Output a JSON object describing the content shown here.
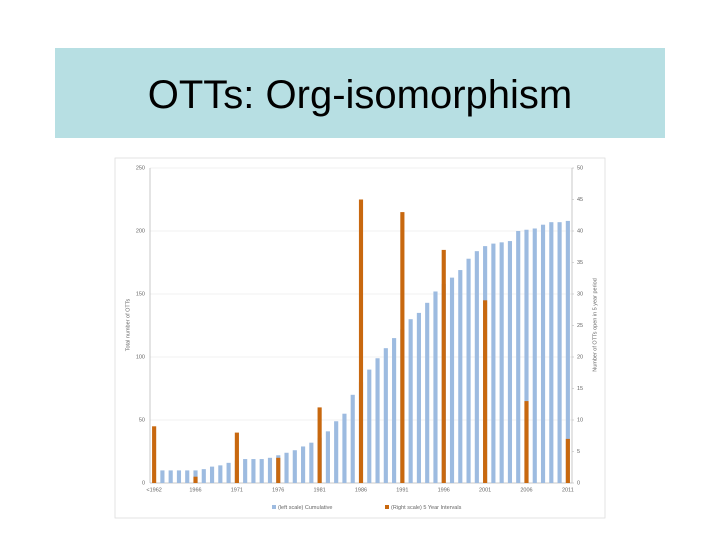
{
  "chart_data": {
    "type": "bar",
    "title": "OTTs: Org-isomorphism",
    "y_label": "Total number of OTTs",
    "y2_label": "Number of OTTs open in 5 year period",
    "categories": [
      "<1962",
      null,
      null,
      null,
      null,
      "1966",
      null,
      null,
      null,
      null,
      "1971",
      null,
      null,
      null,
      null,
      "1976",
      null,
      null,
      null,
      null,
      "1981",
      null,
      null,
      null,
      null,
      "1986",
      null,
      null,
      null,
      null,
      "1991",
      null,
      null,
      null,
      null,
      "1996",
      null,
      null,
      null,
      null,
      "2001",
      null,
      null,
      null,
      null,
      "2006",
      null,
      null,
      null,
      null,
      "2011"
    ],
    "series": [
      {
        "name": "(left scale) Cumulative",
        "color": "#9dbbe0",
        "values": [
          null,
          10,
          10,
          10,
          10,
          10,
          11,
          13,
          14,
          16,
          18,
          19,
          19,
          19,
          20,
          22,
          24,
          26,
          29,
          32,
          36,
          41,
          49,
          55,
          70,
          80,
          90,
          99,
          107,
          115,
          122,
          130,
          135,
          143,
          152,
          158,
          163,
          169,
          178,
          184,
          188,
          190,
          191,
          192,
          200,
          201,
          202,
          205,
          207,
          207,
          208
        ]
      },
      {
        "name": "(Right scale) 5 Year Intervals",
        "color": "#c8680f",
        "axis": "y2",
        "values": [
          9,
          null,
          null,
          null,
          null,
          1,
          null,
          null,
          null,
          null,
          8,
          null,
          null,
          null,
          null,
          4,
          null,
          null,
          null,
          null,
          12,
          null,
          null,
          null,
          null,
          45,
          null,
          null,
          null,
          null,
          43,
          null,
          null,
          null,
          null,
          37,
          null,
          null,
          null,
          null,
          29,
          null,
          null,
          null,
          null,
          13,
          null,
          null,
          null,
          null,
          7
        ]
      }
    ],
    "ylim": [
      0,
      250
    ],
    "yticks": [
      0,
      50,
      100,
      150,
      200,
      250
    ],
    "y2lim": [
      0,
      50
    ],
    "y2ticks": [
      0,
      5,
      10,
      15,
      20,
      25,
      30,
      35,
      40,
      45,
      50
    ],
    "grid": true,
    "legend": "bottom"
  }
}
